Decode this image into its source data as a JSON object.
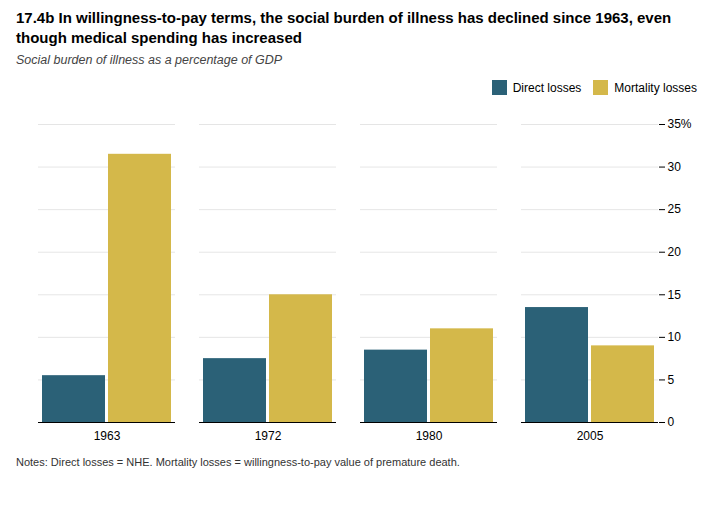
{
  "chart_data": {
    "type": "bar",
    "title": "17.4b In willingness-to-pay terms, the social burden of illness has declined since 1963, even though medical spending has increased",
    "subtitle": "Social burden of illness as a percentage of GDP",
    "note": "Notes: Direct losses = NHE. Mortality losses = willingness-to-pay value of premature death.",
    "categories": [
      "1963",
      "1972",
      "1980",
      "2005"
    ],
    "series": [
      {
        "name": "Direct losses",
        "color": "#2B6177",
        "values": [
          5.5,
          7.5,
          8.5,
          13.5
        ]
      },
      {
        "name": "Mortality losses",
        "color": "#D4B84A",
        "values": [
          31.5,
          15.0,
          11.0,
          9.0
        ]
      }
    ],
    "ylim": [
      0,
      35
    ],
    "yticks": [
      0,
      5,
      10,
      15,
      20,
      25,
      30,
      {
        "value": 35,
        "label": "35%"
      }
    ],
    "grid": true,
    "legend": "upper right"
  }
}
